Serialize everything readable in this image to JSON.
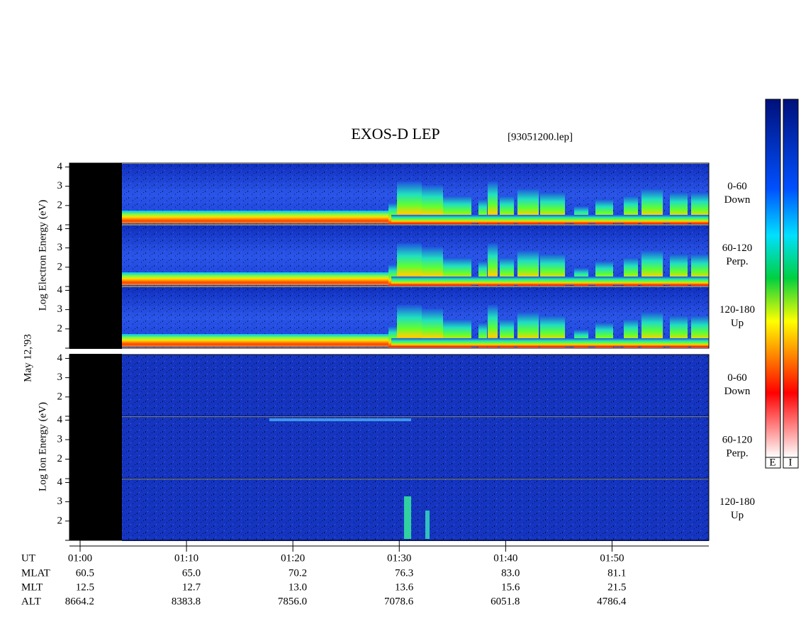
{
  "header": {
    "title": "EXOS-D LEP",
    "file": "[93051200.lep]"
  },
  "chart_data": {
    "type": "spectrogram",
    "ylim": [
      1,
      4.2
    ],
    "yticks": [
      2,
      3,
      4
    ],
    "xlim": [
      59,
      119.1
    ],
    "xticks": [
      {
        "value": 60,
        "label": "01:00"
      },
      {
        "value": 70,
        "label": "01:10"
      },
      {
        "value": 80,
        "label": "01:20"
      },
      {
        "value": 90,
        "label": "01:30"
      },
      {
        "value": 100,
        "label": "01:40"
      },
      {
        "value": 110,
        "label": "01:50"
      }
    ],
    "y_labels": [
      "Log   Electron   Energy (eV)",
      "Log   Ion   Energy (eV)"
    ],
    "date_label": "May 12,'93",
    "panel_labels": [
      [
        "0-60",
        "Down"
      ],
      [
        "60-120",
        "Perp."
      ],
      [
        "120-180",
        "Up"
      ],
      [
        "0-60",
        "Down"
      ],
      [
        "60-120",
        "Perp."
      ],
      [
        "120-180",
        "Up"
      ]
    ],
    "colorbar_labels": [
      "E",
      "I"
    ]
  },
  "ephemeris": {
    "x_label": "UT",
    "rows": [
      {
        "label": "MLAT",
        "values": [
          "60.5",
          "65.0",
          "70.2",
          "76.3",
          "83.0",
          "81.1"
        ]
      },
      {
        "label": "MLT",
        "values": [
          "12.5",
          "12.7",
          "13.0",
          "13.6",
          "15.6",
          "21.5"
        ]
      },
      {
        "label": "ALT",
        "values": [
          "8664.2",
          "8383.8",
          "7856.0",
          "7078.6",
          "6051.8",
          "4786.4"
        ]
      }
    ]
  }
}
